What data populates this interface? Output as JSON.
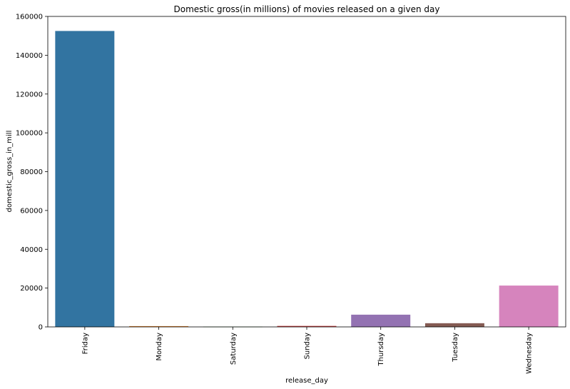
{
  "chart_data": {
    "type": "bar",
    "title": "Domestic gross(in millions) of movies released on a given day",
    "xlabel": "release_day",
    "ylabel": "domestic_gross_in_mill",
    "categories": [
      "Friday",
      "Monday",
      "Saturday",
      "Sunday",
      "Thursday",
      "Tuesday",
      "Wednesday"
    ],
    "values": [
      152500,
      400,
      100,
      500,
      6300,
      1900,
      21300
    ],
    "colors": [
      "#3274a1",
      "#e1812c",
      "#3a923a",
      "#c03d3e",
      "#9372b2",
      "#845b53",
      "#d684bd"
    ],
    "ylim": [
      0,
      160000
    ],
    "yticks": [
      0,
      20000,
      40000,
      60000,
      80000,
      100000,
      120000,
      140000,
      160000
    ],
    "ytick_labels": [
      "0",
      "20000",
      "40000",
      "60000",
      "80000",
      "100000",
      "120000",
      "140000",
      "160000"
    ],
    "grid": false,
    "legend": "none"
  }
}
